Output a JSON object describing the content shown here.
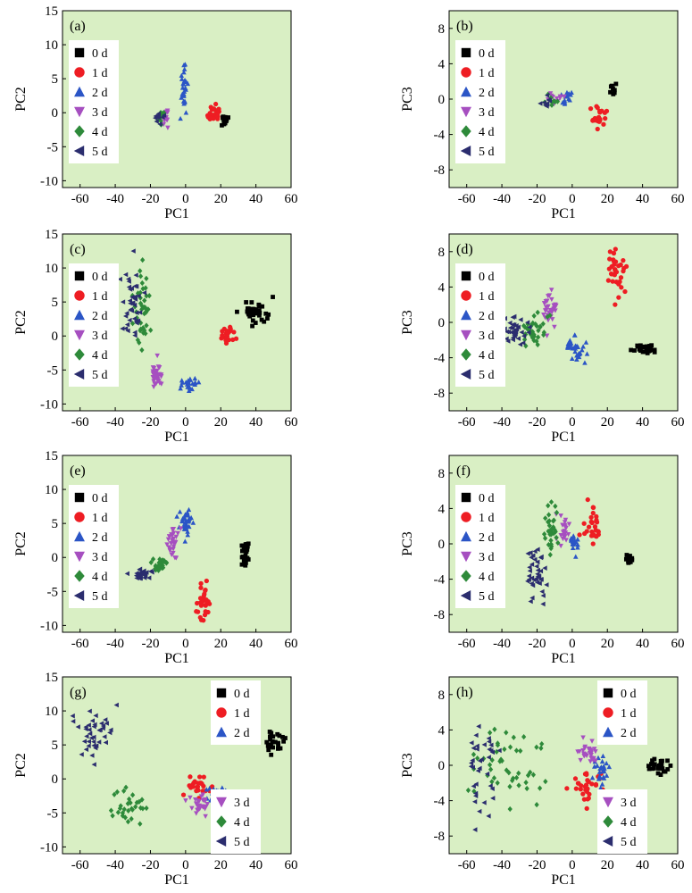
{
  "chart_data": [
    {
      "type": "scatter",
      "panel_label": "(a)",
      "xlabel": "PC1",
      "ylabel": "PC2",
      "xlim": [
        -70,
        60
      ],
      "ylim": [
        -11,
        15
      ],
      "xticks": [
        -60,
        -40,
        -20,
        0,
        20,
        40,
        60
      ],
      "yticks": [
        -10,
        -5,
        0,
        5,
        10,
        15
      ],
      "legend_groups": [
        [
          0,
          1,
          2,
          3,
          4,
          5
        ]
      ],
      "legend_position": "left",
      "series": [
        {
          "name": "0 d",
          "clusters": [
            {
              "cx": 22,
              "cy": -1,
              "sx": 1.5,
              "sy": 0.6,
              "n": 14
            }
          ]
        },
        {
          "name": "1 d",
          "clusters": [
            {
              "cx": 16,
              "cy": -0.3,
              "sx": 3,
              "sy": 0.8,
              "n": 24
            }
          ]
        },
        {
          "name": "2 d",
          "clusters": [
            {
              "cx": -1,
              "cy": 4,
              "sx": 1.2,
              "sy": 2.2,
              "n": 28
            }
          ]
        },
        {
          "name": "3 d",
          "clusters": [
            {
              "cx": -11,
              "cy": -0.5,
              "sx": 2,
              "sy": 0.8,
              "n": 16
            }
          ]
        },
        {
          "name": "4 d",
          "clusters": [
            {
              "cx": -14,
              "cy": -0.6,
              "sx": 1.5,
              "sy": 0.6,
              "n": 8
            }
          ]
        },
        {
          "name": "5 d",
          "clusters": [
            {
              "cx": -15,
              "cy": -0.7,
              "sx": 2,
              "sy": 0.6,
              "n": 10
            }
          ]
        }
      ]
    },
    {
      "type": "scatter",
      "panel_label": "(b)",
      "xlabel": "PC1",
      "ylabel": "PC3",
      "xlim": [
        -70,
        60
      ],
      "ylim": [
        -10,
        10
      ],
      "xticks": [
        -60,
        -40,
        -20,
        0,
        20,
        40,
        60
      ],
      "yticks": [
        -8,
        -4,
        0,
        4,
        8
      ],
      "legend_groups": [
        [
          0,
          1,
          2,
          3,
          4,
          5
        ]
      ],
      "legend_position": "left",
      "series": [
        {
          "name": "0 d",
          "clusters": [
            {
              "cx": 23,
              "cy": 1.2,
              "sx": 1.2,
              "sy": 0.4,
              "n": 8
            }
          ]
        },
        {
          "name": "1 d",
          "clusters": [
            {
              "cx": 15,
              "cy": -1.8,
              "sx": 2.5,
              "sy": 1.1,
              "n": 22
            }
          ]
        },
        {
          "name": "2 d",
          "clusters": [
            {
              "cx": -3,
              "cy": 0.2,
              "sx": 2.5,
              "sy": 0.4,
              "n": 16
            }
          ]
        },
        {
          "name": "3 d",
          "clusters": [
            {
              "cx": -9,
              "cy": 0,
              "sx": 2.5,
              "sy": 0.5,
              "n": 14
            }
          ]
        },
        {
          "name": "4 d",
          "clusters": [
            {
              "cx": -11,
              "cy": -0.2,
              "sx": 2,
              "sy": 0.4,
              "n": 8
            }
          ]
        },
        {
          "name": "5 d",
          "clusters": [
            {
              "cx": -14,
              "cy": -0.3,
              "sx": 2,
              "sy": 0.4,
              "n": 10
            }
          ]
        }
      ]
    },
    {
      "type": "scatter",
      "panel_label": "(c)",
      "xlabel": "PC1",
      "ylabel": "PC2",
      "xlim": [
        -70,
        60
      ],
      "ylim": [
        -11,
        15
      ],
      "xticks": [
        -60,
        -40,
        -20,
        0,
        20,
        40,
        60
      ],
      "yticks": [
        -10,
        -5,
        0,
        5,
        10,
        15
      ],
      "legend_groups": [
        [
          0,
          1,
          2,
          3,
          4,
          5
        ]
      ],
      "legend_position": "left",
      "series": [
        {
          "name": "0 d",
          "clusters": [
            {
              "cx": 40,
              "cy": 3.5,
              "sx": 5,
              "sy": 1.2,
              "n": 34
            }
          ]
        },
        {
          "name": "1 d",
          "clusters": [
            {
              "cx": 24,
              "cy": 0.3,
              "sx": 3,
              "sy": 0.9,
              "n": 22
            }
          ]
        },
        {
          "name": "2 d",
          "clusters": [
            {
              "cx": 2,
              "cy": -7,
              "sx": 4,
              "sy": 0.5,
              "n": 22
            }
          ]
        },
        {
          "name": "3 d",
          "clusters": [
            {
              "cx": -16,
              "cy": -6,
              "sx": 2.5,
              "sy": 1.3,
              "n": 32
            }
          ]
        },
        {
          "name": "4 d",
          "clusters": [
            {
              "cx": -25,
              "cy": 4,
              "sx": 3,
              "sy": 4,
              "n": 40
            }
          ]
        },
        {
          "name": "5 d",
          "clusters": [
            {
              "cx": -31,
              "cy": 5,
              "sx": 4,
              "sy": 3.5,
              "n": 42
            }
          ]
        }
      ]
    },
    {
      "type": "scatter",
      "panel_label": "(d)",
      "xlabel": "PC1",
      "ylabel": "PC3",
      "xlim": [
        -70,
        60
      ],
      "ylim": [
        -10,
        10
      ],
      "xticks": [
        -60,
        -40,
        -20,
        0,
        20,
        40,
        60
      ],
      "yticks": [
        -8,
        -4,
        0,
        4,
        8
      ],
      "legend_groups": [
        [
          0,
          1,
          2,
          3,
          4,
          5
        ]
      ],
      "legend_position": "left",
      "series": [
        {
          "name": "0 d",
          "clusters": [
            {
              "cx": 42,
              "cy": -3,
              "sx": 4,
              "sy": 0.35,
              "n": 32
            }
          ]
        },
        {
          "name": "1 d",
          "clusters": [
            {
              "cx": 25,
              "cy": 5.5,
              "sx": 3,
              "sy": 1.8,
              "n": 34
            }
          ]
        },
        {
          "name": "2 d",
          "clusters": [
            {
              "cx": 2,
              "cy": -3,
              "sx": 3,
              "sy": 1.3,
              "n": 30
            }
          ]
        },
        {
          "name": "3 d",
          "clusters": [
            {
              "cx": -13,
              "cy": 1.5,
              "sx": 3,
              "sy": 1.4,
              "n": 34
            }
          ]
        },
        {
          "name": "4 d",
          "clusters": [
            {
              "cx": -22,
              "cy": -1,
              "sx": 4,
              "sy": 1.2,
              "n": 34
            }
          ]
        },
        {
          "name": "5 d",
          "clusters": [
            {
              "cx": -32,
              "cy": -1,
              "sx": 5,
              "sy": 1.1,
              "n": 40
            }
          ]
        }
      ]
    },
    {
      "type": "scatter",
      "panel_label": "(e)",
      "xlabel": "PC1",
      "ylabel": "PC2",
      "xlim": [
        -70,
        60
      ],
      "ylim": [
        -11,
        15
      ],
      "xticks": [
        -60,
        -40,
        -20,
        0,
        20,
        40,
        60
      ],
      "yticks": [
        -10,
        -5,
        0,
        5,
        10,
        15
      ],
      "legend_groups": [
        [
          0,
          1,
          2,
          3,
          4,
          5
        ]
      ],
      "legend_position": "left",
      "series": [
        {
          "name": "0 d",
          "clusters": [
            {
              "cx": 34,
              "cy": 0.5,
              "sx": 1.5,
              "sy": 1.3,
              "n": 24
            }
          ]
        },
        {
          "name": "1 d",
          "clusters": [
            {
              "cx": 10,
              "cy": -6.5,
              "sx": 2,
              "sy": 2,
              "n": 30
            }
          ]
        },
        {
          "name": "2 d",
          "clusters": [
            {
              "cx": 0,
              "cy": 5,
              "sx": 2.5,
              "sy": 1.5,
              "n": 34
            }
          ]
        },
        {
          "name": "3 d",
          "clusters": [
            {
              "cx": -7,
              "cy": 2.5,
              "sx": 2,
              "sy": 1.5,
              "n": 30
            }
          ]
        },
        {
          "name": "4 d",
          "clusters": [
            {
              "cx": -14,
              "cy": -1,
              "sx": 3,
              "sy": 0.8,
              "n": 28
            }
          ]
        },
        {
          "name": "5 d",
          "clusters": [
            {
              "cx": -25,
              "cy": -2.5,
              "sx": 3,
              "sy": 0.5,
              "n": 30
            }
          ]
        }
      ]
    },
    {
      "type": "scatter",
      "panel_label": "(f)",
      "xlabel": "PC1",
      "ylabel": "PC3",
      "xlim": [
        -70,
        60
      ],
      "ylim": [
        -10,
        10
      ],
      "xticks": [
        -60,
        -40,
        -20,
        0,
        20,
        40,
        60
      ],
      "yticks": [
        -8,
        -4,
        0,
        4,
        8
      ],
      "legend_groups": [
        [
          0,
          1,
          2,
          3,
          4,
          5
        ]
      ],
      "legend_position": "left",
      "series": [
        {
          "name": "0 d",
          "clusters": [
            {
              "cx": 33,
              "cy": -1.8,
              "sx": 1.2,
              "sy": 0.4,
              "n": 12
            }
          ]
        },
        {
          "name": "1 d",
          "clusters": [
            {
              "cx": 12,
              "cy": 2,
              "sx": 3,
              "sy": 1.3,
              "n": 28
            }
          ]
        },
        {
          "name": "2 d",
          "clusters": [
            {
              "cx": 1,
              "cy": 0,
              "sx": 2,
              "sy": 0.8,
              "n": 22
            }
          ]
        },
        {
          "name": "3 d",
          "clusters": [
            {
              "cx": -5,
              "cy": 1.5,
              "sx": 2,
              "sy": 0.9,
              "n": 22
            }
          ]
        },
        {
          "name": "4 d",
          "clusters": [
            {
              "cx": -12,
              "cy": 2,
              "sx": 2.5,
              "sy": 1.6,
              "n": 34
            }
          ]
        },
        {
          "name": "5 d",
          "clusters": [
            {
              "cx": -20,
              "cy": -3.5,
              "sx": 4,
              "sy": 1.8,
              "n": 40
            }
          ]
        }
      ]
    },
    {
      "type": "scatter",
      "panel_label": "(g)",
      "xlabel": "PC1",
      "ylabel": "PC2",
      "xlim": [
        -70,
        60
      ],
      "ylim": [
        -11,
        15
      ],
      "xticks": [
        -60,
        -40,
        -20,
        0,
        20,
        40,
        60
      ],
      "yticks": [
        -10,
        -5,
        0,
        5,
        10,
        15
      ],
      "legend_groups": [
        [
          0,
          1,
          2
        ],
        [
          3,
          4,
          5
        ]
      ],
      "legend_position": "top-right / bottom-right",
      "series": [
        {
          "name": "0 d",
          "clusters": [
            {
              "cx": 51,
              "cy": 5.5,
              "sx": 4,
              "sy": 0.9,
              "n": 26
            }
          ]
        },
        {
          "name": "1 d",
          "clusters": [
            {
              "cx": 9,
              "cy": -1.5,
              "sx": 5,
              "sy": 1.2,
              "n": 26
            }
          ]
        },
        {
          "name": "2 d",
          "clusters": [
            {
              "cx": 17,
              "cy": -2.5,
              "sx": 4,
              "sy": 1.2,
              "n": 26
            }
          ]
        },
        {
          "name": "3 d",
          "clusters": [
            {
              "cx": 8,
              "cy": -3.5,
              "sx": 4,
              "sy": 1,
              "n": 28
            }
          ]
        },
        {
          "name": "4 d",
          "clusters": [
            {
              "cx": -35,
              "cy": -4.5,
              "sx": 7,
              "sy": 1.8,
              "n": 30
            }
          ]
        },
        {
          "name": "5 d",
          "clusters": [
            {
              "cx": -52,
              "cy": 7,
              "sx": 8,
              "sy": 2.2,
              "n": 40
            }
          ]
        }
      ]
    },
    {
      "type": "scatter",
      "panel_label": "(h)",
      "xlabel": "PC1",
      "ylabel": "PC3",
      "xlim": [
        -70,
        60
      ],
      "ylim": [
        -10,
        10
      ],
      "xticks": [
        -60,
        -40,
        -20,
        0,
        20,
        40,
        60
      ],
      "yticks": [
        -8,
        -4,
        0,
        4,
        8
      ],
      "legend_groups": [
        [
          0,
          1,
          2
        ],
        [
          3,
          4,
          5
        ]
      ],
      "legend_position": "top-right / bottom-right",
      "series": [
        {
          "name": "0 d",
          "clusters": [
            {
              "cx": 50,
              "cy": 0,
              "sx": 4,
              "sy": 0.6,
              "n": 28
            }
          ]
        },
        {
          "name": "1 d",
          "clusters": [
            {
              "cx": 10,
              "cy": -2.5,
              "sx": 5,
              "sy": 1.2,
              "n": 30
            }
          ]
        },
        {
          "name": "2 d",
          "clusters": [
            {
              "cx": 17,
              "cy": -0.5,
              "sx": 3,
              "sy": 1,
              "n": 26
            }
          ]
        },
        {
          "name": "3 d",
          "clusters": [
            {
              "cx": 9,
              "cy": 1.5,
              "sx": 3,
              "sy": 0.9,
              "n": 28
            }
          ]
        },
        {
          "name": "4 d",
          "clusters": [
            {
              "cx": -35,
              "cy": 0,
              "sx": 14,
              "sy": 3,
              "n": 48
            }
          ]
        },
        {
          "name": "5 d",
          "clusters": [
            {
              "cx": -52,
              "cy": 0.5,
              "sx": 8,
              "sy": 3.5,
              "n": 36
            }
          ]
        }
      ]
    }
  ],
  "style": {
    "plot_background": "#d9efc4",
    "series_colors": [
      "#000000",
      "#ee1d23",
      "#2b55c6",
      "#a64fc0",
      "#2e8a3a",
      "#2b2d6e"
    ],
    "series_markers": [
      "square",
      "circle",
      "triangle-up",
      "triangle-down",
      "diamond",
      "triangle-left"
    ]
  }
}
